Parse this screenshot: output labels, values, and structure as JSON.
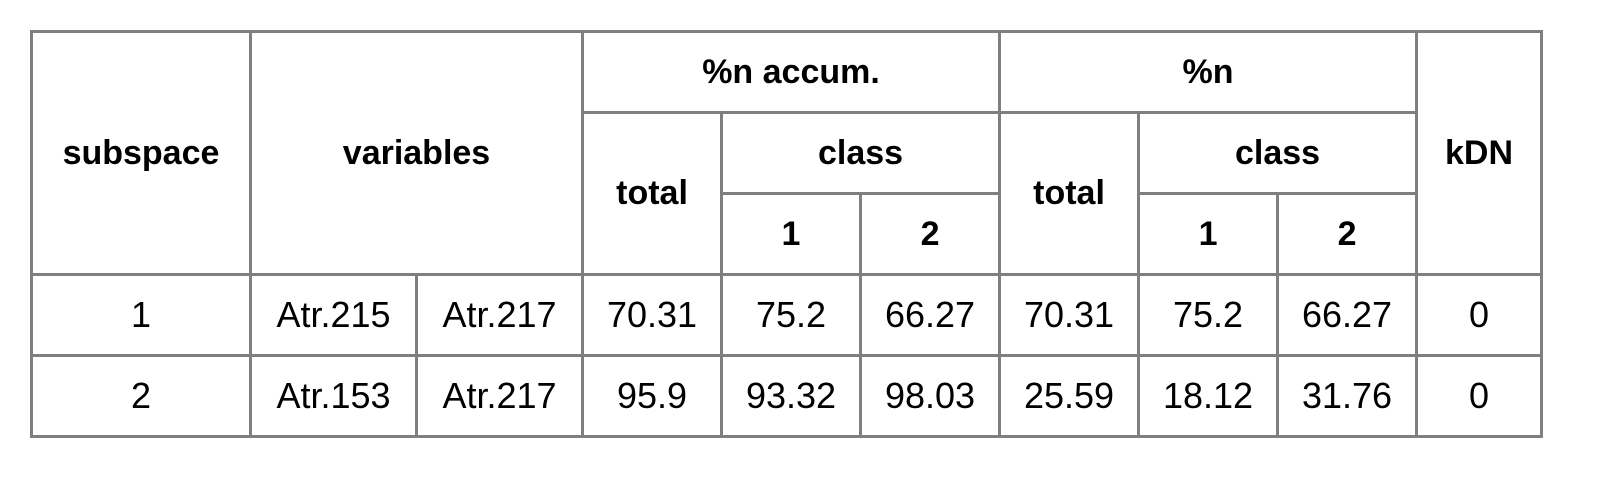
{
  "table": {
    "headers": {
      "subspace": "subspace",
      "variables": "variables",
      "accum_group": "%n accum.",
      "n_group": "%n",
      "kdn": "kDN",
      "accum_total": "total",
      "accum_class": "class",
      "accum_class_1": "1",
      "accum_class_2": "2",
      "n_total": "total",
      "n_class": "class",
      "n_class_1": "1",
      "n_class_2": "2"
    },
    "rows": [
      {
        "subspace": "1",
        "var_a": "Atr.215",
        "var_b": "Atr.217",
        "accum_total": "70.31",
        "accum_class_1": "75.2",
        "accum_class_2": "66.27",
        "n_total": "70.31",
        "n_class_1": "75.2",
        "n_class_2": "66.27",
        "kdn": "0"
      },
      {
        "subspace": "2",
        "var_a": "Atr.153",
        "var_b": "Atr.217",
        "accum_total": "95.9",
        "accum_class_1": "93.32",
        "accum_class_2": "98.03",
        "n_total": "25.59",
        "n_class_1": "18.12",
        "n_class_2": "31.76",
        "kdn": "0"
      }
    ]
  },
  "colors": {
    "border": "#7f7f7f",
    "text": "#000000",
    "background": "#ffffff"
  }
}
